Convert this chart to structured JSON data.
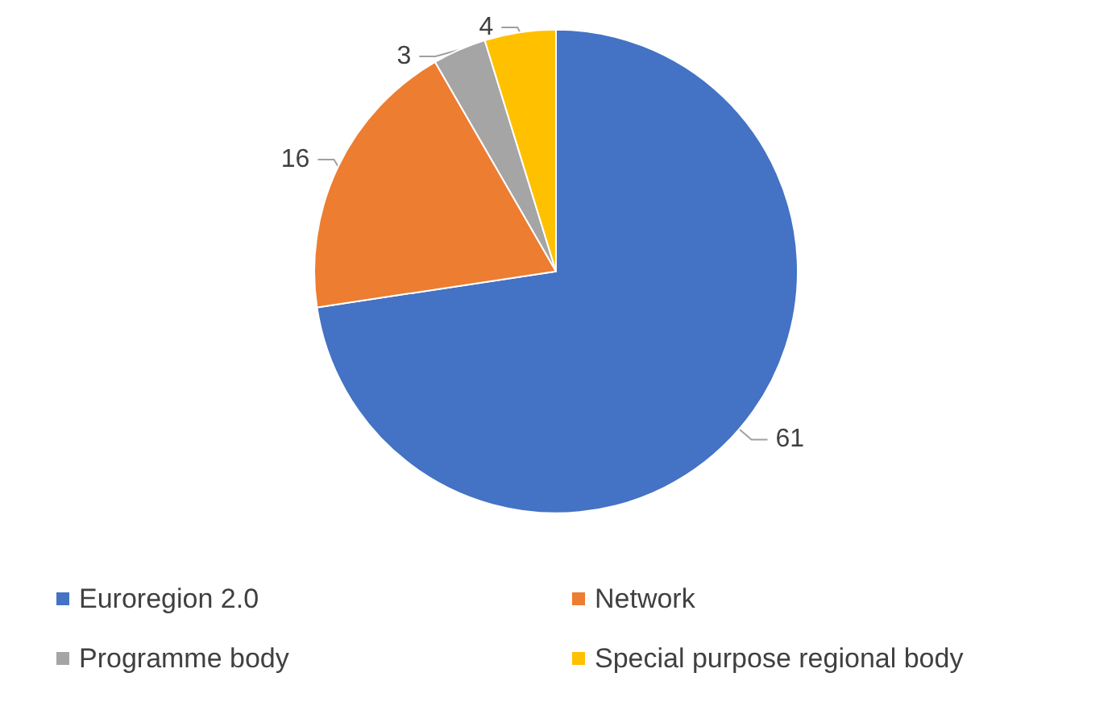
{
  "chart_data": {
    "type": "pie",
    "categories": [
      "Euroregion 2.0",
      "Network",
      "Programme body",
      "Special purpose regional body"
    ],
    "values": [
      61,
      16,
      3,
      4
    ],
    "colors": [
      "#4472c4",
      "#ed7d31",
      "#a5a5a5",
      "#ffc000"
    ],
    "data_labels": true,
    "legend": "bottom"
  }
}
